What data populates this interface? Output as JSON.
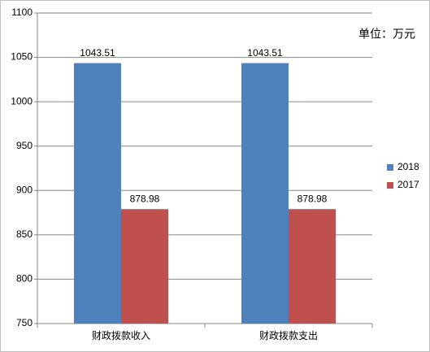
{
  "chart_data": {
    "type": "bar",
    "annotation": "单位：万元",
    "categories": [
      "财政拨款收入",
      "财政拨款支出"
    ],
    "series": [
      {
        "name": "2018",
        "color": "#4f81bd",
        "values": [
          1043.51,
          1043.51
        ]
      },
      {
        "name": "2017",
        "color": "#c0504d",
        "values": [
          878.98,
          878.98
        ]
      }
    ],
    "ylim": [
      750,
      1100
    ],
    "yticks": [
      750,
      800,
      850,
      900,
      950,
      1000,
      1050,
      1100
    ],
    "grid": true,
    "legend": "right"
  }
}
